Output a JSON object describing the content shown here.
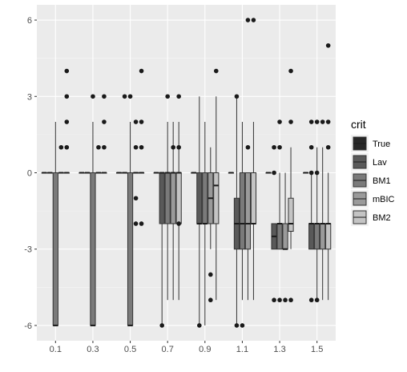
{
  "chart_data": {
    "type": "boxplot",
    "title": "",
    "xlabel": "",
    "ylabel": "",
    "categories": [
      "0.1",
      "0.3",
      "0.5",
      "0.7",
      "0.9",
      "1.1",
      "1.3",
      "1.5"
    ],
    "ylim": [
      -6.6,
      6.6
    ],
    "yticks": [
      -6,
      -3,
      0,
      3,
      6
    ],
    "grid": true,
    "legend": {
      "title": "crit",
      "position": "right"
    },
    "series": [
      {
        "name": "True",
        "color": "#262626",
        "boxes": [
          {
            "lower": 0,
            "q1": 0,
            "median": 0,
            "q3": 0,
            "upper": 0,
            "outliers": []
          },
          {
            "lower": 0,
            "q1": 0,
            "median": 0,
            "q3": 0,
            "upper": 0,
            "outliers": []
          },
          {
            "lower": 0,
            "q1": 0,
            "median": 0,
            "q3": 0,
            "upper": 0,
            "outliers": []
          },
          {
            "lower": 0,
            "q1": 0,
            "median": 0,
            "q3": 0,
            "upper": 0,
            "outliers": []
          },
          {
            "lower": 0,
            "q1": 0,
            "median": 0,
            "q3": 0,
            "upper": 0,
            "outliers": []
          },
          {
            "lower": 0,
            "q1": 0,
            "median": 0,
            "q3": 0,
            "upper": 0,
            "outliers": []
          },
          {
            "lower": 0,
            "q1": 0,
            "median": 0,
            "q3": 0,
            "upper": 0,
            "outliers": []
          },
          {
            "lower": 0,
            "q1": 0,
            "median": 0,
            "q3": 0,
            "upper": 0,
            "outliers": []
          }
        ]
      },
      {
        "name": "Lav",
        "color": "#595959",
        "boxes": [
          {
            "lower": 0,
            "q1": 0,
            "median": 0,
            "q3": 0,
            "upper": 0,
            "outliers": []
          },
          {
            "lower": 0,
            "q1": 0,
            "median": 0,
            "q3": 0,
            "upper": 0,
            "outliers": []
          },
          {
            "lower": 0,
            "q1": 0,
            "median": 0,
            "q3": 0,
            "upper": 0,
            "outliers": [
              3
            ]
          },
          {
            "lower": -6,
            "q1": -2,
            "median": 0,
            "q3": 0,
            "upper": 0,
            "outliers": [
              -6
            ]
          },
          {
            "lower": -6,
            "q1": -2,
            "median": -2,
            "q3": 0,
            "upper": 3,
            "outliers": [
              -6
            ]
          },
          {
            "lower": -6,
            "q1": -3,
            "median": -2,
            "q3": -1,
            "upper": 3,
            "outliers": [
              3,
              -6
            ]
          },
          {
            "lower": -3,
            "q1": -3,
            "median": -2.5,
            "q3": -2,
            "upper": -2,
            "outliers": [
              1,
              0,
              -5
            ]
          },
          {
            "lower": -3,
            "q1": -3,
            "median": -2,
            "q3": -2,
            "upper": 0,
            "outliers": [
              2,
              1,
              0,
              -5
            ]
          }
        ]
      },
      {
        "name": "BM1",
        "color": "#7a7a7a",
        "boxes": [
          {
            "lower": -6,
            "q1": -6,
            "median": -6,
            "q3": 0,
            "upper": 2,
            "outliers": []
          },
          {
            "lower": -6,
            "q1": -6,
            "median": -6,
            "q3": 0,
            "upper": 2,
            "outliers": [
              3
            ]
          },
          {
            "lower": -6,
            "q1": -6,
            "median": -6,
            "q3": 0,
            "upper": 2,
            "outliers": [
              3
            ]
          },
          {
            "lower": -5,
            "q1": -2,
            "median": 0,
            "q3": 0,
            "upper": 2,
            "outliers": [
              3
            ]
          },
          {
            "lower": -6,
            "q1": -2,
            "median": -2,
            "q3": 0,
            "upper": 2,
            "outliers": []
          },
          {
            "lower": -5,
            "q1": -3,
            "median": -2,
            "q3": 0,
            "upper": 2,
            "outliers": [
              -6
            ]
          },
          {
            "lower": -3,
            "q1": -3,
            "median": -2,
            "q3": -2,
            "upper": 0,
            "outliers": [
              2,
              1,
              -5
            ]
          },
          {
            "lower": -5,
            "q1": -3,
            "median": -2,
            "q3": -2,
            "upper": 1,
            "outliers": [
              2,
              0,
              -5
            ]
          }
        ]
      },
      {
        "name": "mBIC",
        "color": "#9a9a9a",
        "boxes": [
          {
            "lower": 0,
            "q1": 0,
            "median": 0,
            "q3": 0,
            "upper": 0,
            "outliers": [
              1
            ]
          },
          {
            "lower": 0,
            "q1": 0,
            "median": 0,
            "q3": 0,
            "upper": 0,
            "outliers": [
              1
            ]
          },
          {
            "lower": 0,
            "q1": 0,
            "median": 0,
            "q3": 0,
            "upper": 0,
            "outliers": [
              2,
              1,
              -1,
              -2
            ]
          },
          {
            "lower": -5,
            "q1": -2,
            "median": 0,
            "q3": 0,
            "upper": 2,
            "outliers": [
              1
            ]
          },
          {
            "lower": -3,
            "q1": -2,
            "median": -1,
            "q3": 0,
            "upper": 1,
            "outliers": [
              -4,
              -5
            ]
          },
          {
            "lower": -5,
            "q1": -3,
            "median": -2,
            "q3": 0,
            "upper": 0,
            "outliers": [
              1,
              6
            ]
          },
          {
            "lower": -3,
            "q1": -3,
            "median": -3,
            "q3": -2,
            "upper": 0,
            "outliers": [
              -5
            ]
          },
          {
            "lower": -5,
            "q1": -3,
            "median": -2,
            "q3": -2,
            "upper": 1,
            "outliers": [
              2
            ]
          }
        ]
      },
      {
        "name": "BM2",
        "color": "#c4c4c4",
        "boxes": [
          {
            "lower": 0,
            "q1": 0,
            "median": 0,
            "q3": 0,
            "upper": 0,
            "outliers": [
              4,
              3,
              2,
              1
            ]
          },
          {
            "lower": 0,
            "q1": 0,
            "median": 0,
            "q3": 0,
            "upper": 0,
            "outliers": [
              3,
              2,
              1
            ]
          },
          {
            "lower": 0,
            "q1": 0,
            "median": 0,
            "q3": 0,
            "upper": 0,
            "outliers": [
              4,
              2,
              1,
              -2
            ]
          },
          {
            "lower": -5,
            "q1": -2,
            "median": 0,
            "q3": 0,
            "upper": 2,
            "outliers": [
              3,
              1,
              -2
            ]
          },
          {
            "lower": -5,
            "q1": -2,
            "median": -0.5,
            "q3": 0,
            "upper": 3,
            "outliers": [
              4
            ]
          },
          {
            "lower": -5,
            "q1": -2,
            "median": -2,
            "q3": 0,
            "upper": 2,
            "outliers": [
              6
            ]
          },
          {
            "lower": -3,
            "q1": -2.3,
            "median": -2,
            "q3": -1,
            "upper": 1,
            "outliers": [
              4,
              2,
              -5
            ]
          },
          {
            "lower": -5,
            "q1": -3,
            "median": -2,
            "q3": -2,
            "upper": 0,
            "outliers": [
              5,
              2,
              1
            ]
          }
        ]
      }
    ]
  }
}
